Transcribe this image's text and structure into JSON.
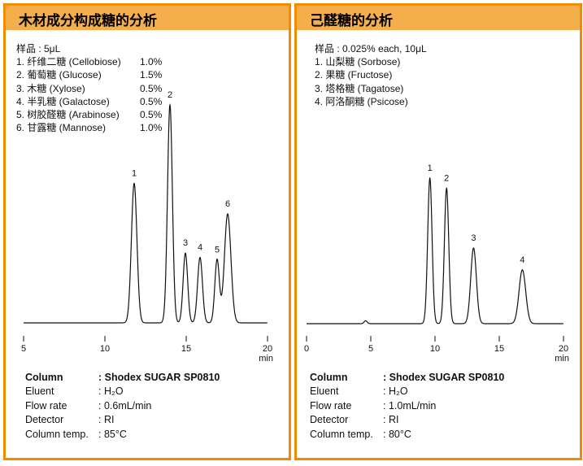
{
  "colors": {
    "border": "#f08c00",
    "header": "#f4ae4c",
    "trace": "#111111"
  },
  "panels": [
    {
      "title": "木材成分构成糖的分析",
      "sample": "样品 : 5μL",
      "legend": [
        {
          "label": "1. 纤维二糖 (Cellobiose)",
          "pct": "1.0%"
        },
        {
          "label": "2. 葡萄糖 (Glucose)",
          "pct": "1.5%"
        },
        {
          "label": "3. 木糖 (Xylose)",
          "pct": "0.5%"
        },
        {
          "label": "4. 半乳糖 (Galactose)",
          "pct": "0.5%"
        },
        {
          "label": "5. 树胶醛糖 (Arabinose)",
          "pct": "0.5%"
        },
        {
          "label": "6. 甘露糖 (Mannose)",
          "pct": "1.0%"
        }
      ],
      "conditions": [
        {
          "label": "Column",
          "value": ": Shodex SUGAR SP0810",
          "bold": true
        },
        {
          "label": "Eluent",
          "value": ": H₂O"
        },
        {
          "label": "Flow rate",
          "value": ": 0.6mL/min"
        },
        {
          "label": "Detector",
          "value": ": RI"
        },
        {
          "label": "Column temp.",
          "value": ": 85°C"
        }
      ]
    },
    {
      "title": "己醛糖的分析",
      "sample": "样品 : 0.025% each, 10μL",
      "legend": [
        {
          "label": "1. 山梨糖 (Sorbose)"
        },
        {
          "label": "2. 果糖 (Fructose)"
        },
        {
          "label": "3. 塔格糖 (Tagatose)"
        },
        {
          "label": "4. 阿洛酮糖 (Psicose)"
        }
      ],
      "conditions": [
        {
          "label": "Column",
          "value": ": Shodex SUGAR SP0810",
          "bold": true
        },
        {
          "label": "Eluent",
          "value": ": H₂O"
        },
        {
          "label": "Flow rate",
          "value": ": 1.0mL/min"
        },
        {
          "label": "Detector",
          "value": ": RI"
        },
        {
          "label": "Column temp.",
          "value": ": 80°C"
        }
      ]
    }
  ],
  "chart_data": [
    {
      "type": "line",
      "xlabel": "min",
      "xlim": [
        5,
        20
      ],
      "xticks": [
        "5",
        "10",
        "15",
        "20"
      ],
      "y_axis": "none",
      "grid": false,
      "peaks": [
        {
          "label": "1",
          "time": 11.8,
          "height": 64
        },
        {
          "label": "2",
          "time": 14.0,
          "height": 100
        },
        {
          "label": "3",
          "time": 14.95,
          "height": 32
        },
        {
          "label": "4",
          "time": 15.85,
          "height": 30
        },
        {
          "label": "5",
          "time": 16.9,
          "height": 29
        },
        {
          "label": "6",
          "time": 17.55,
          "height": 50
        }
      ]
    },
    {
      "type": "line",
      "xlabel": "min",
      "xlim": [
        0,
        20
      ],
      "xticks": [
        "0",
        "5",
        "10",
        "15",
        "20"
      ],
      "y_axis": "none",
      "grid": false,
      "peaks": [
        {
          "label": "1",
          "time": 9.6,
          "height": 100
        },
        {
          "label": "2",
          "time": 10.9,
          "height": 93
        },
        {
          "label": "3",
          "time": 13.0,
          "height": 52
        },
        {
          "label": "4",
          "time": 16.8,
          "height": 37
        }
      ],
      "minor_peaks": [
        {
          "time": 4.6,
          "height": 2
        }
      ]
    }
  ]
}
